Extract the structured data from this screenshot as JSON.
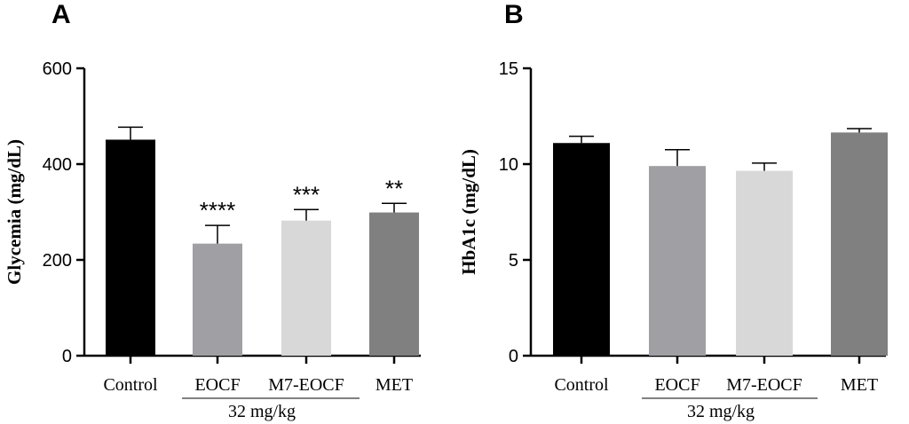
{
  "chart_data": [
    {
      "type": "bar",
      "panel": "A",
      "categories": [
        "Control",
        "EOCF",
        "M7-EOCF",
        "MET"
      ],
      "values": [
        451,
        234,
        282,
        299
      ],
      "errors": [
        26,
        38,
        23,
        19
      ],
      "colors": [
        "#000000",
        "#a0a0a4",
        "#d8d8d8",
        "#808080"
      ],
      "significance": [
        "",
        "****",
        "***",
        "**"
      ],
      "group_label": "32 mg/kg",
      "group_members": [
        "EOCF",
        "M7-EOCF"
      ],
      "ylabel": "Glycemia (mg/dL)",
      "xlabel": "",
      "ylim": [
        0,
        600
      ],
      "yticks": [
        0,
        200,
        400,
        600
      ],
      "ytick_labels": [
        "0",
        "200",
        "400",
        "600"
      ]
    },
    {
      "type": "bar",
      "panel": "B",
      "categories": [
        "Control",
        "EOCF",
        "M7-EOCF",
        "MET"
      ],
      "values": [
        11.1,
        9.9,
        9.65,
        11.65
      ],
      "errors": [
        0.35,
        0.85,
        0.4,
        0.2
      ],
      "colors": [
        "#000000",
        "#a0a0a4",
        "#d8d8d8",
        "#808080"
      ],
      "significance": [
        "",
        "",
        "",
        ""
      ],
      "group_label": "32 mg/kg",
      "group_members": [
        "EOCF",
        "M7-EOCF"
      ],
      "ylabel": "HbA1c (mg/dL)",
      "xlabel": "",
      "ylim": [
        0,
        15
      ],
      "yticks": [
        0,
        5,
        10,
        15
      ],
      "ytick_labels": [
        "0",
        "5",
        "10",
        "15"
      ]
    }
  ]
}
